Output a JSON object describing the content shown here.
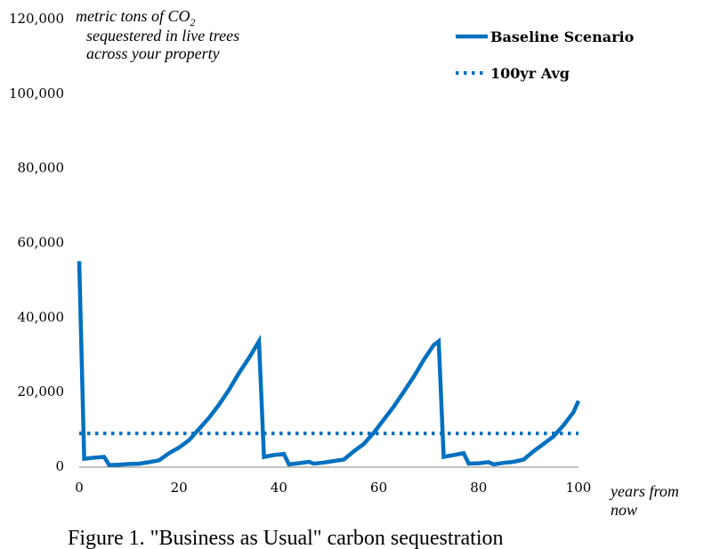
{
  "chart_data": {
    "type": "line",
    "title": "",
    "ylabel_lines": [
      "metric tons of CO",
      "sequestered in live trees",
      "across your property"
    ],
    "ylabel_subscript": "2",
    "xlabel_lines": [
      "years from",
      "now"
    ],
    "caption": "Figure 1. \"Business as Usual\" carbon sequestration",
    "xlim": [
      0,
      100
    ],
    "ylim": [
      0,
      120000
    ],
    "xticks": [
      0,
      20,
      40,
      60,
      80,
      100
    ],
    "xtick_labels": [
      "0",
      "20",
      "40",
      "60",
      "80",
      "100"
    ],
    "yticks": [
      0,
      20000,
      40000,
      60000,
      80000,
      100000,
      120000
    ],
    "ytick_labels": [
      "0",
      "20,000",
      "40,000",
      "60,000",
      "80,000",
      "100,000",
      "120,000"
    ],
    "grid": false,
    "legend_position": "top-right",
    "series": [
      {
        "name": "Baseline Scenario",
        "color": "#0070c0",
        "style": "solid",
        "x": [
          0,
          1,
          3,
          5,
          6,
          8,
          10,
          12,
          14,
          16,
          18,
          20,
          22,
          24,
          26,
          28,
          30,
          32,
          34,
          36,
          37,
          39,
          41,
          42,
          44,
          46,
          47,
          49,
          51,
          53,
          55,
          57,
          59,
          61,
          63,
          65,
          67,
          69,
          71,
          72,
          73,
          75,
          77,
          78,
          80,
          82,
          83,
          85,
          87,
          89,
          91,
          93,
          95,
          97,
          99,
          100
        ],
        "values": [
          55000,
          2000,
          2300,
          2500,
          300,
          400,
          600,
          700,
          1100,
          1600,
          3500,
          5000,
          7000,
          10000,
          13000,
          16500,
          20500,
          25000,
          29000,
          33500,
          2500,
          3000,
          3300,
          500,
          800,
          1200,
          700,
          1000,
          1400,
          1800,
          4000,
          6000,
          9000,
          12500,
          16000,
          20000,
          24000,
          28500,
          32500,
          33500,
          2500,
          3000,
          3500,
          700,
          800,
          1100,
          500,
          900,
          1200,
          1800,
          4000,
          6000,
          8000,
          11000,
          14500,
          17500
        ]
      },
      {
        "name": "100yr Avg",
        "color": "#0070c0",
        "style": "dotted",
        "x": [
          0,
          100
        ],
        "values": [
          8800,
          8800
        ]
      }
    ]
  }
}
